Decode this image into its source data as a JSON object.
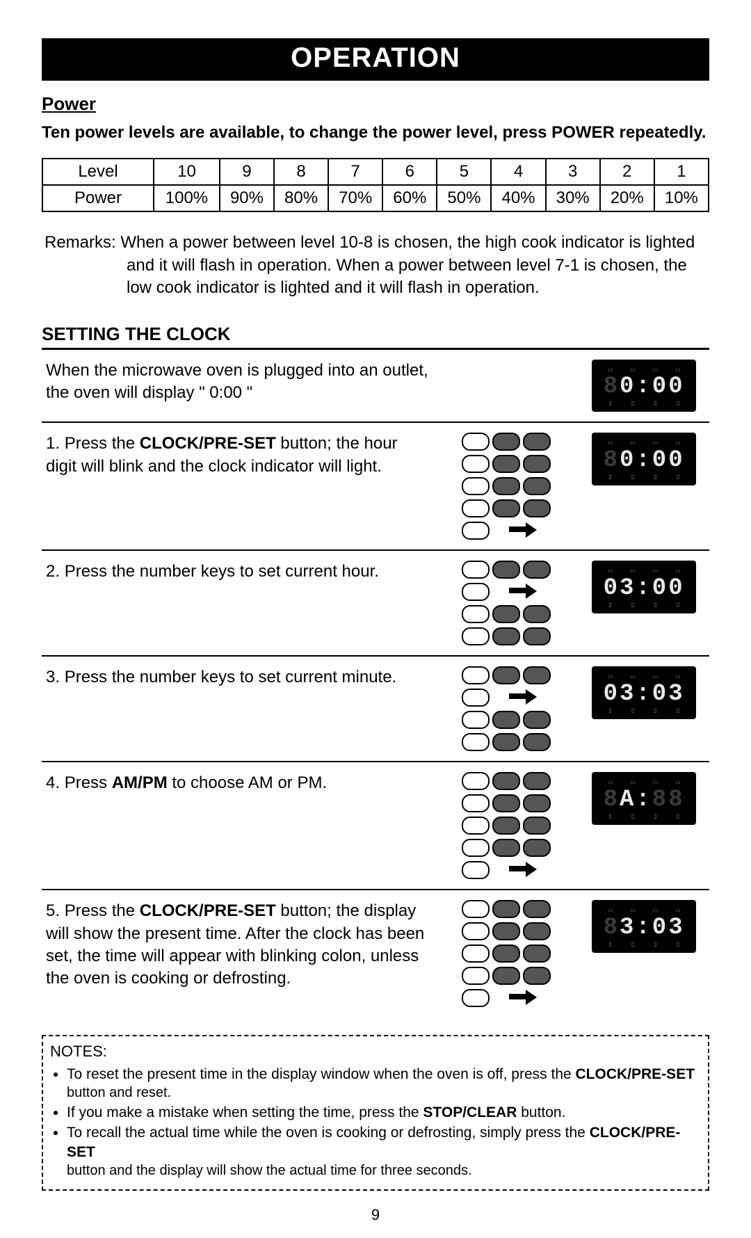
{
  "title": "OPERATION",
  "power_section": {
    "heading": "Power",
    "intro": "Ten power levels are available, to change the power level, press POWER repeatedly.",
    "row_labels": [
      "Level",
      "Power"
    ],
    "levels": [
      "10",
      "9",
      "8",
      "7",
      "6",
      "5",
      "4",
      "3",
      "2",
      "1"
    ],
    "powers": [
      "100%",
      "90%",
      "80%",
      "70%",
      "60%",
      "50%",
      "40%",
      "30%",
      "20%",
      "10%"
    ],
    "remarks_label": "Remarks:",
    "remarks_l1": "When a power between level 10-8 is chosen, the high cook indicator is lighted",
    "remarks_l2": "and it will flash in operation. When a power between level 7-1 is chosen, the",
    "remarks_l3": "low cook indicator is lighted and it will flash in operation."
  },
  "clock_section": {
    "heading": "SETTING THE CLOCK",
    "steps": [
      {
        "num": "",
        "text_pre": "When the microwave oven is plugged into an outlet,",
        "text_mid": "",
        "text_post": " the oven will display \" 0:00 \"",
        "show_keypad": false,
        "display_template": "dim0_0_00"
      },
      {
        "num": "1. ",
        "text_pre": "Press the ",
        "text_mid": "CLOCK/PRE-SET",
        "text_post": " button; the hour digit will blink and the clock indicator will light.",
        "show_keypad": true,
        "arrow_row": 4,
        "display_template": "dim00_00"
      },
      {
        "num": "2. ",
        "text_pre": "Press the number keys to set current hour.",
        "text_mid": "",
        "text_post": "",
        "show_keypad": true,
        "arrow_row": 2,
        "display_template": "d03_00"
      },
      {
        "num": "3. ",
        "text_pre": "Press the number keys to set current minute.",
        "text_mid": "",
        "text_post": "",
        "show_keypad": true,
        "arrow_row": 2,
        "display_template": "d03_03"
      },
      {
        "num": "4. ",
        "text_pre": "Press ",
        "text_mid": "AM/PM",
        "text_post": " to choose AM or PM.",
        "show_keypad": true,
        "arrow_row": 4,
        "display_template": "dA_88_dim"
      },
      {
        "num": "5. ",
        "text_pre": "Press the ",
        "text_mid": "CLOCK/PRE-SET",
        "text_post": "  button; the display will show the present time. After the clock has been set, the time will appear with blinking colon, unless the oven is cooking or defrosting.",
        "show_keypad": true,
        "arrow_row": 4,
        "display_template": "d3_03_dim"
      }
    ]
  },
  "lcd_indicators_top": [
    "▭",
    "▭",
    "▭",
    "▭"
  ],
  "lcd_indicators_bot": [
    "▯",
    "▯",
    "▯",
    "▯"
  ],
  "displays": {
    "dim0_0_00": [
      {
        "t": "8",
        "dim": true
      },
      {
        "t": "0",
        "dim": false
      },
      {
        "t": ":",
        "dim": false
      },
      {
        "t": "0",
        "dim": false
      },
      {
        "t": "0",
        "dim": false
      }
    ],
    "dim00_00": [
      {
        "t": "8",
        "dim": true
      },
      {
        "t": "0",
        "dim": false
      },
      {
        "t": ":",
        "dim": false
      },
      {
        "t": "0",
        "dim": false
      },
      {
        "t": "0",
        "dim": false
      }
    ],
    "d03_00": [
      {
        "t": "0",
        "dim": false
      },
      {
        "t": "3",
        "dim": false
      },
      {
        "t": ":",
        "dim": false
      },
      {
        "t": "0",
        "dim": false
      },
      {
        "t": "0",
        "dim": false
      }
    ],
    "d03_03": [
      {
        "t": "0",
        "dim": false
      },
      {
        "t": "3",
        "dim": false
      },
      {
        "t": ":",
        "dim": false
      },
      {
        "t": "0",
        "dim": false
      },
      {
        "t": "3",
        "dim": false
      }
    ],
    "dA_88_dim": [
      {
        "t": "8",
        "dim": true
      },
      {
        "t": "A",
        "dim": false
      },
      {
        "t": ":",
        "dim": false
      },
      {
        "t": "8",
        "dim": true
      },
      {
        "t": "8",
        "dim": true
      }
    ],
    "d3_03_dim": [
      {
        "t": "8",
        "dim": true
      },
      {
        "t": "3",
        "dim": false
      },
      {
        "t": ":",
        "dim": false
      },
      {
        "t": "0",
        "dim": false
      },
      {
        "t": "3",
        "dim": false
      }
    ]
  },
  "notes": {
    "title": "NOTES:",
    "items": [
      {
        "pre": "To reset the present time in the display window when the oven is off, press the ",
        "b": "CLOCK/PRE-SET",
        "post": "",
        "sub": "button and reset."
      },
      {
        "pre": "If you make a mistake when setting the time, press the ",
        "b": "STOP/CLEAR",
        "post": "  button.",
        "sub": ""
      },
      {
        "pre": "To recall the actual time while the oven is cooking or defrosting, simply press the ",
        "b": "CLOCK/PRE-SET",
        "post": "",
        "sub": "button and the display will show the actual time for three seconds."
      }
    ]
  },
  "page_number": "9"
}
